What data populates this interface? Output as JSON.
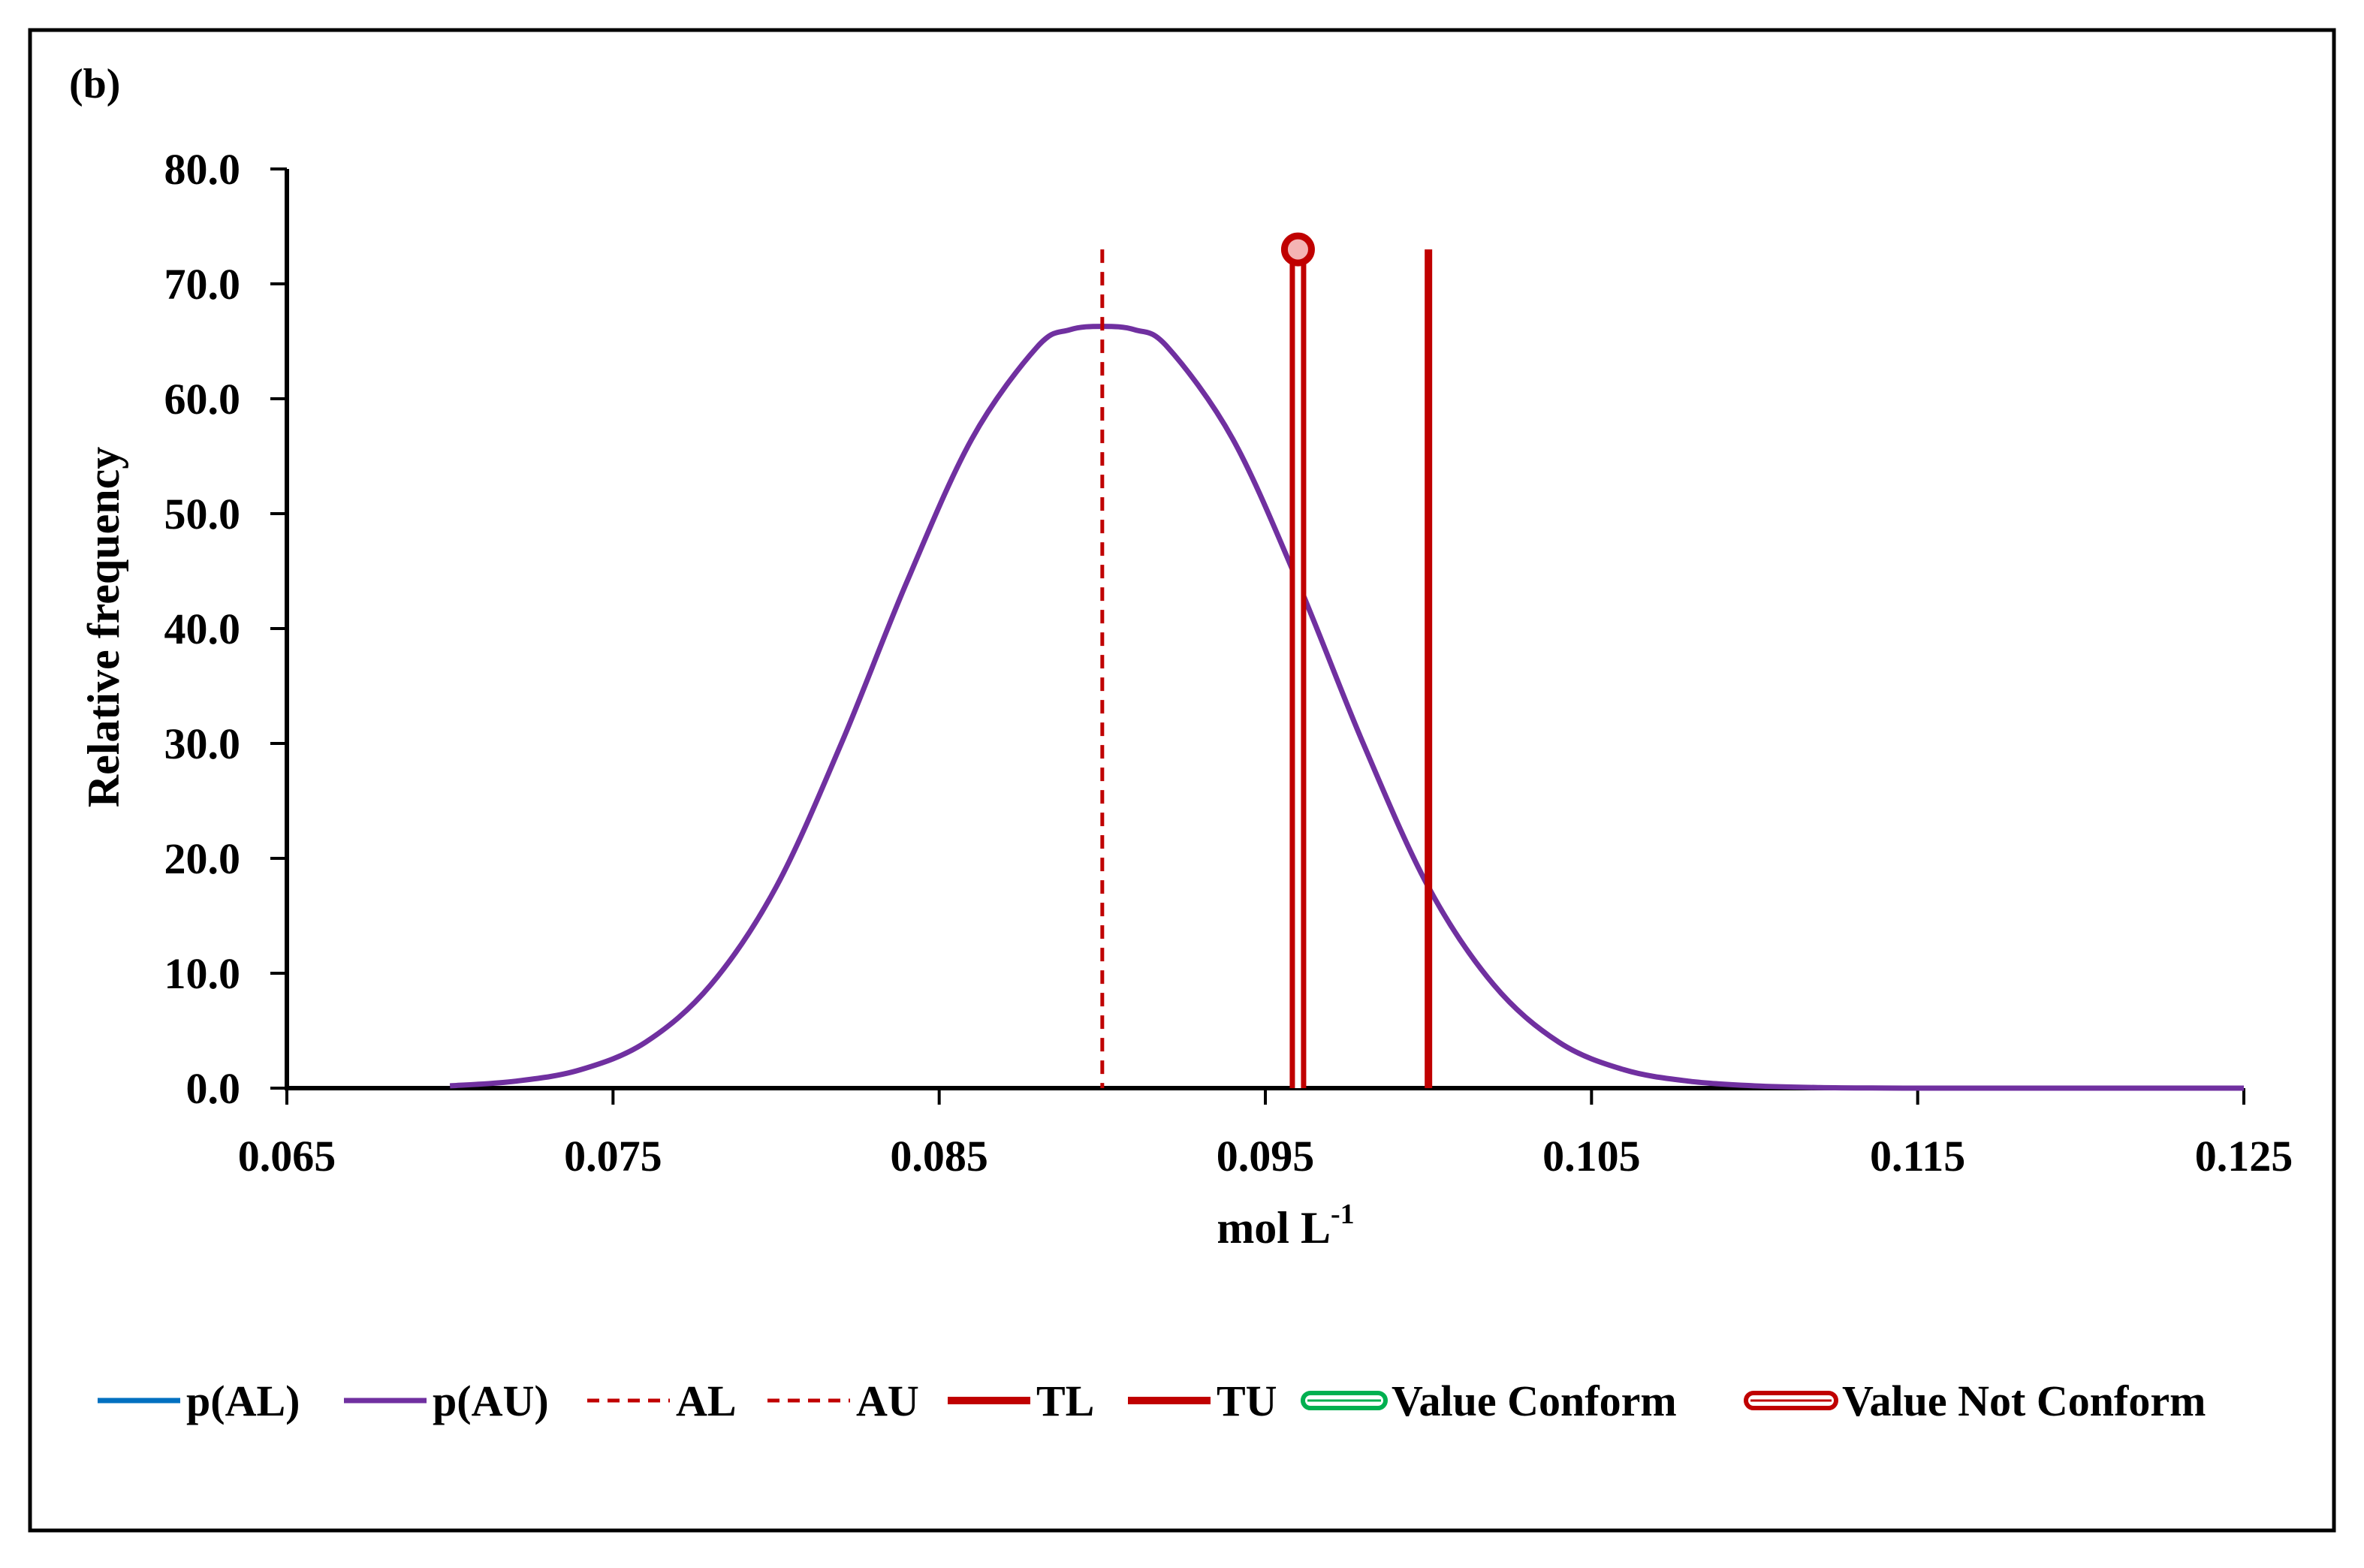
{
  "panel_label": "(b)",
  "chart_data": {
    "type": "line",
    "title": "",
    "xlabel": "mol L",
    "xlabel_superscript": "-1",
    "ylabel": "Relative frequency",
    "xlim": [
      0.065,
      0.125
    ],
    "ylim": [
      0,
      80
    ],
    "xticks": [
      0.065,
      0.075,
      0.085,
      0.095,
      0.105,
      0.115,
      0.125
    ],
    "xtick_labels": [
      "0.065",
      "0.075",
      "0.085",
      "0.095",
      "0.105",
      "0.115",
      "0.125"
    ],
    "yticks": [
      0,
      10,
      20,
      30,
      40,
      50,
      60,
      70,
      80
    ],
    "ytick_labels": [
      "0.0",
      "10.0",
      "20.0",
      "30.0",
      "40.0",
      "50.0",
      "60.0",
      "70.0",
      "80.0"
    ],
    "grid": false,
    "legend_position": "bottom",
    "series": [
      {
        "name": "p(AU)",
        "style": "solid",
        "color": "#7030A0",
        "x": [
          0.07,
          0.072,
          0.074,
          0.076,
          0.078,
          0.08,
          0.082,
          0.084,
          0.086,
          0.088,
          0.089,
          0.09,
          0.091,
          0.092,
          0.094,
          0.096,
          0.098,
          0.1,
          0.102,
          0.104,
          0.106,
          0.108,
          0.11,
          0.112,
          0.114,
          0.116,
          0.12,
          0.125
        ],
        "y": [
          0.2,
          0.6,
          1.6,
          4.0,
          9.0,
          17.5,
          30.0,
          44.0,
          56.5,
          64.5,
          66.0,
          66.3,
          66.0,
          64.5,
          56.5,
          44.0,
          30.0,
          17.5,
          9.0,
          4.0,
          1.6,
          0.6,
          0.2,
          0.05,
          0.01,
          0.0,
          0.0,
          0.0
        ]
      }
    ],
    "vertical_lines": [
      {
        "name": "AL",
        "x": 0.09,
        "y_top": 73,
        "style": "dashed",
        "color": "#C00000"
      },
      {
        "name": "TU",
        "x": 0.1,
        "y_top": 73,
        "style": "solid",
        "color": "#C00000"
      },
      {
        "name": "Value Not Conform",
        "x": 0.096,
        "y_top": 73,
        "style": "double",
        "color": "#C00000",
        "marker": "circle"
      }
    ],
    "legend": [
      {
        "label": "p(AL)",
        "style": "solid",
        "color": "#0070C0"
      },
      {
        "label": "p(AU)",
        "style": "solid",
        "color": "#7030A0"
      },
      {
        "label": "AL",
        "style": "dashed",
        "color": "#C00000"
      },
      {
        "label": "AU",
        "style": "dashed",
        "color": "#C00000"
      },
      {
        "label": "TL",
        "style": "solid",
        "color": "#C00000"
      },
      {
        "label": "TU",
        "style": "solid",
        "color": "#C00000"
      },
      {
        "label": "Value Conform",
        "style": "double",
        "color": "#00B050"
      },
      {
        "label": "Value Not Conform",
        "style": "double",
        "color": "#C00000"
      }
    ]
  }
}
